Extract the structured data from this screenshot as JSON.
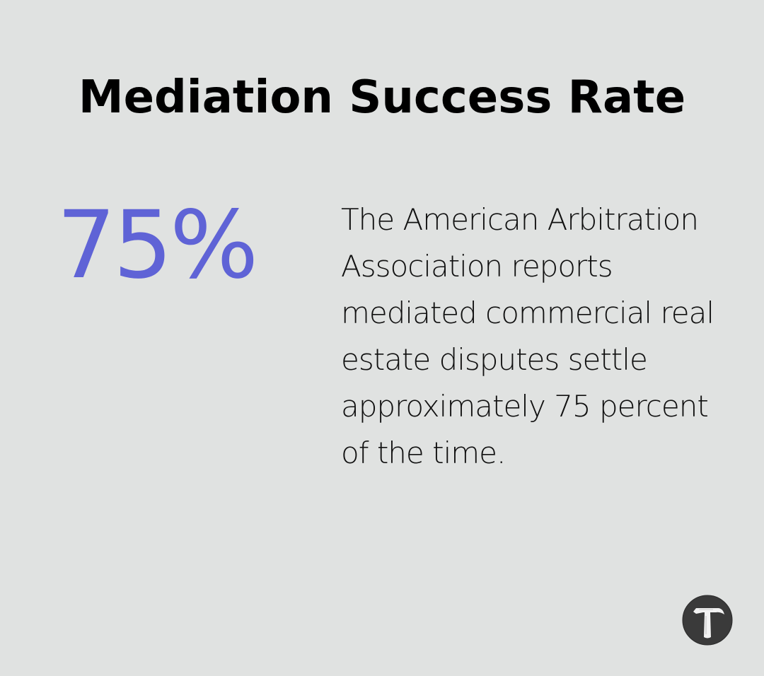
{
  "title": "Mediation Success Rate",
  "stat": {
    "value": "75%",
    "accent_color": "#5f63d6"
  },
  "description": "The American Arbitration Association reports mediated commercial real estate disputes settle approximately 75 percent of the time.",
  "logo": {
    "icon": "hammer-icon"
  },
  "colors": {
    "background": "#e0e2e1",
    "text": "#000000"
  }
}
